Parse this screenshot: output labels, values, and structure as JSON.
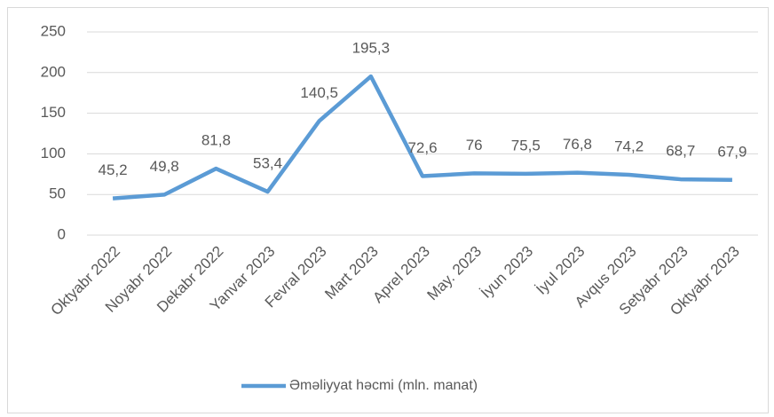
{
  "chart_data": {
    "type": "line",
    "categories": [
      "Oktyabr 2022",
      "Noyabr 2022",
      "Dekabr 2022",
      "Yanvar 2023",
      "Fevral 2023",
      "Mart 2023",
      "Aprel 2023",
      "May. 2023",
      "İyun 2023",
      "İyul 2023",
      "Avqus 2023",
      "Setyabr 2023",
      "Oktyabr 2023"
    ],
    "series": [
      {
        "name": "Əməliyyat həcmi (mln. manat)",
        "color": "#5b9bd5",
        "values": [
          45.2,
          49.8,
          81.8,
          53.4,
          140.5,
          195.3,
          72.6,
          76,
          75.5,
          76.8,
          74.2,
          68.7,
          67.9
        ],
        "value_labels": [
          "45,2",
          "49,8",
          "81,8",
          "53,4",
          "140,5",
          "195,3",
          "72,6",
          "76",
          "75,5",
          "76,8",
          "74,2",
          "68,7",
          "67,9"
        ]
      }
    ],
    "ylim": [
      0,
      250
    ],
    "yticks": [
      0,
      50,
      100,
      150,
      200,
      250
    ],
    "grid": true,
    "legend": "bottom"
  }
}
